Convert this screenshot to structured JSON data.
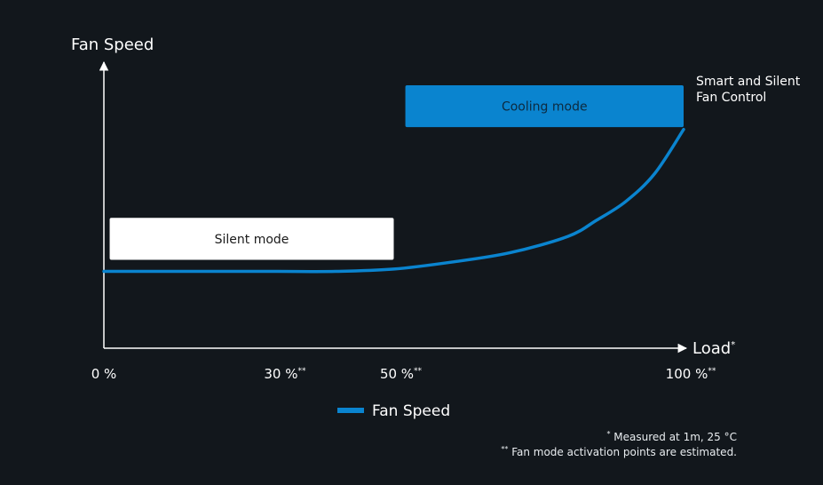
{
  "chart_data": {
    "type": "line",
    "ylabel": "Fan Speed",
    "xlabel": "Load",
    "xlabel_marker": "*",
    "x_ticks": [
      {
        "value": 0,
        "label": "0 %",
        "marker": ""
      },
      {
        "value": 30,
        "label": "30 %",
        "marker": "**"
      },
      {
        "value": 50,
        "label": "50 %",
        "marker": "**"
      },
      {
        "value": 100,
        "label": "100 %",
        "marker": "**"
      }
    ],
    "xlim": [
      0,
      100
    ],
    "ylim": [
      0,
      100
    ],
    "series": [
      {
        "name": "Fan Speed",
        "color": "#0a84cf",
        "x": [
          0,
          10,
          20,
          30,
          40,
          50,
          60,
          70,
          80,
          85,
          90,
          95,
          100
        ],
        "y": [
          33,
          33,
          33,
          33,
          33,
          34,
          37,
          41,
          48,
          55,
          63,
          75,
          94
        ]
      }
    ],
    "regions": [
      {
        "label": "Silent mode",
        "x_range": [
          1,
          50
        ],
        "y_range": [
          38,
          56
        ],
        "fill": "#ffffff",
        "text_color": "#1a1a1a"
      },
      {
        "label": "Cooling mode",
        "x_range": [
          52,
          100
        ],
        "y_range": [
          95,
          113
        ],
        "fill": "#0a84cf",
        "text_color": "#0d2a3f"
      }
    ],
    "annotation": {
      "lines": [
        "Smart and Silent",
        "Fan Control"
      ],
      "at_x": 100,
      "at_y": 94
    },
    "legend": {
      "position": "bottom-center",
      "label": "Fan Speed"
    },
    "grid": false
  },
  "footnotes": [
    {
      "marker": "*",
      "text": " Measured at 1m, 25 °C"
    },
    {
      "marker": "**",
      "text": " Fan mode activation points are estimated."
    }
  ]
}
